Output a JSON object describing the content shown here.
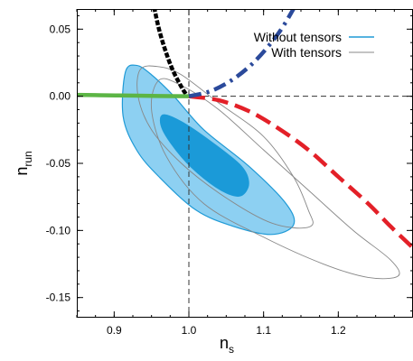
{
  "chart_data": {
    "type": "scatter",
    "title": "",
    "xlabel": "n",
    "xlabel_sub": "s",
    "ylabel": "n",
    "ylabel_sub": "run",
    "xlim": [
      0.85,
      1.3
    ],
    "ylim": [
      -0.165,
      0.065
    ],
    "xticks": [
      0.9,
      1.0,
      1.1,
      1.2
    ],
    "xtick_labels": [
      "0.9",
      "1.0",
      "1.1",
      "1.2"
    ],
    "yticks": [
      0.05,
      0.0,
      -0.05,
      -0.1,
      -0.15
    ],
    "ytick_labels": [
      "0.05",
      "0.00",
      "-0.05",
      "-0.10",
      "-0.15"
    ],
    "grid": false,
    "legend_position": "top-right",
    "reference_lines": {
      "x": 1.0,
      "y": 0.0
    },
    "legend": [
      {
        "label": "Without tensors",
        "color": "#1f9ad6"
      },
      {
        "label": "With tensors",
        "color": "#888888"
      }
    ],
    "contours": [
      {
        "series": "Without tensors",
        "level": "95%",
        "color": "#8dd0f2",
        "stroke": "#1f9ad6",
        "points": [
          [
            0.915,
            0.018
          ],
          [
            0.93,
            0.023
          ],
          [
            0.95,
            0.016
          ],
          [
            0.98,
            0.0
          ],
          [
            1.02,
            -0.025
          ],
          [
            1.08,
            -0.052
          ],
          [
            1.13,
            -0.08
          ],
          [
            1.14,
            -0.096
          ],
          [
            1.11,
            -0.103
          ],
          [
            1.06,
            -0.097
          ],
          [
            1.01,
            -0.085
          ],
          [
            0.96,
            -0.06
          ],
          [
            0.93,
            -0.04
          ],
          [
            0.912,
            -0.015
          ]
        ]
      },
      {
        "series": "Without tensors",
        "level": "68%",
        "color": "#1b9ad8",
        "stroke": "#1b9ad8",
        "points": [
          [
            0.965,
            -0.014
          ],
          [
            0.99,
            -0.019
          ],
          [
            1.03,
            -0.034
          ],
          [
            1.07,
            -0.052
          ],
          [
            1.08,
            -0.065
          ],
          [
            1.07,
            -0.074
          ],
          [
            1.05,
            -0.072
          ],
          [
            1.02,
            -0.061
          ],
          [
            0.99,
            -0.045
          ],
          [
            0.965,
            -0.025
          ]
        ]
      },
      {
        "series": "With tensors",
        "level": "95%",
        "color": "none",
        "stroke": "#888888",
        "points": [
          [
            0.935,
            0.02
          ],
          [
            0.96,
            0.022
          ],
          [
            0.99,
            0.016
          ],
          [
            1.04,
            -0.005
          ],
          [
            1.1,
            -0.03
          ],
          [
            1.14,
            -0.06
          ],
          [
            1.16,
            -0.085
          ],
          [
            1.165,
            -0.096
          ],
          [
            1.14,
            -0.098
          ],
          [
            1.1,
            -0.092
          ],
          [
            1.04,
            -0.072
          ],
          [
            0.99,
            -0.05
          ],
          [
            0.95,
            -0.025
          ],
          [
            0.932,
            0.0
          ]
        ]
      },
      {
        "series": "With tensors",
        "level": "68%",
        "color": "none",
        "stroke": "#888888",
        "points": [
          [
            0.96,
            0.012
          ],
          [
            0.99,
            0.008
          ],
          [
            1.04,
            -0.01
          ],
          [
            1.1,
            -0.04
          ],
          [
            1.16,
            -0.07
          ],
          [
            1.22,
            -0.1
          ],
          [
            1.27,
            -0.122
          ],
          [
            1.28,
            -0.134
          ],
          [
            1.24,
            -0.135
          ],
          [
            1.18,
            -0.125
          ],
          [
            1.1,
            -0.105
          ],
          [
            1.02,
            -0.08
          ],
          [
            0.97,
            -0.045
          ],
          [
            0.95,
            -0.01
          ]
        ]
      }
    ],
    "curves": [
      {
        "color": "#000000",
        "style": "dotted",
        "points": [
          [
            0.954,
            0.065
          ],
          [
            0.96,
            0.05
          ],
          [
            0.968,
            0.035
          ],
          [
            0.978,
            0.02
          ],
          [
            0.99,
            0.007
          ],
          [
            0.998,
            0.0
          ]
        ]
      },
      {
        "color": "#5cb545",
        "style": "solid",
        "points": [
          [
            0.85,
            0.001
          ],
          [
            0.88,
            0.0008
          ],
          [
            0.92,
            0.0005
          ],
          [
            0.96,
            0.0002
          ],
          [
            1.0,
            0.0
          ]
        ]
      },
      {
        "color": "#e32028",
        "style": "dashed",
        "points": [
          [
            1.0,
            0.0
          ],
          [
            1.04,
            -0.003
          ],
          [
            1.08,
            -0.011
          ],
          [
            1.12,
            -0.024
          ],
          [
            1.16,
            -0.04
          ],
          [
            1.2,
            -0.06
          ],
          [
            1.24,
            -0.08
          ],
          [
            1.27,
            -0.097
          ],
          [
            1.3,
            -0.113
          ]
        ]
      },
      {
        "color": "#2b4a9b",
        "style": "dashdot",
        "points": [
          [
            1.0,
            0.0
          ],
          [
            1.03,
            0.004
          ],
          [
            1.06,
            0.013
          ],
          [
            1.09,
            0.027
          ],
          [
            1.12,
            0.047
          ],
          [
            1.14,
            0.065
          ]
        ]
      }
    ]
  }
}
